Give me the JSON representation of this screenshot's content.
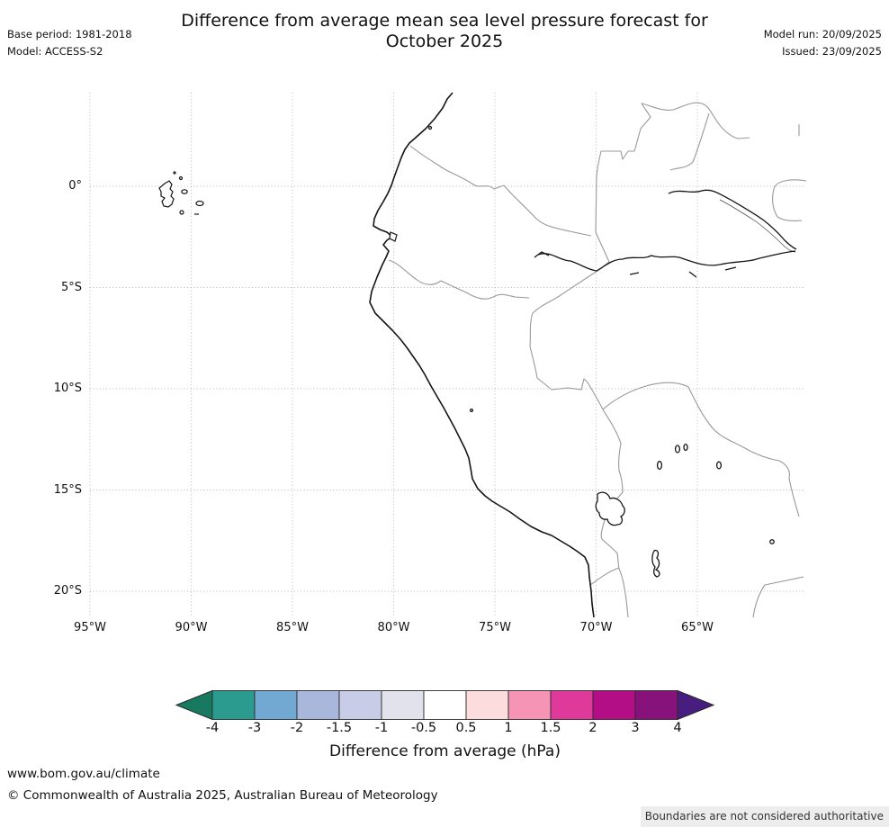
{
  "header": {
    "title_line1": "Difference from average mean sea level pressure forecast for",
    "title_line2": "October 2025",
    "base_period": "Base period: 1981-2018",
    "model": "Model: ACCESS-S2",
    "model_run": "Model run: 20/09/2025",
    "issued": "Issued: 23/09/2025"
  },
  "map": {
    "lat_ticks": [
      "0°",
      "5°S",
      "10°S",
      "15°S",
      "20°S"
    ],
    "lon_ticks": [
      "95°W",
      "90°W",
      "85°W",
      "80°W",
      "75°W",
      "70°W",
      "65°W"
    ],
    "features": [
      "coastline",
      "country-borders",
      "galapagos-islands",
      "amazon-rivers",
      "lake-titicaca"
    ]
  },
  "colorbar": {
    "label": "Difference from average (hPa)",
    "units": "hPa",
    "tick_labels": [
      "-4",
      "-3",
      "-2",
      "-1.5",
      "-1",
      "-0.5",
      "0.5",
      "1",
      "1.5",
      "2",
      "3",
      "4"
    ],
    "tick_values": [
      -4,
      -3,
      -2,
      -1.5,
      -1,
      -0.5,
      0.5,
      1,
      1.5,
      2,
      3,
      4
    ],
    "segment_colors": [
      "#2b9b90",
      "#72a9d3",
      "#a8b7db",
      "#c9cce7",
      "#e2e2ec",
      "#ffffff",
      "#fcdcdc",
      "#f694b6",
      "#e0399c",
      "#b40e86",
      "#87127b"
    ],
    "arrow_left_color": "#177a60",
    "arrow_right_color": "#471d80",
    "outline_color": "#2b2b2b"
  },
  "footer": {
    "url": "www.bom.gov.au/climate",
    "copyright": "© Commonwealth of Australia 2025, Australian Bureau of Meteorology",
    "boundaries_note": "Boundaries are not considered authoritative"
  }
}
